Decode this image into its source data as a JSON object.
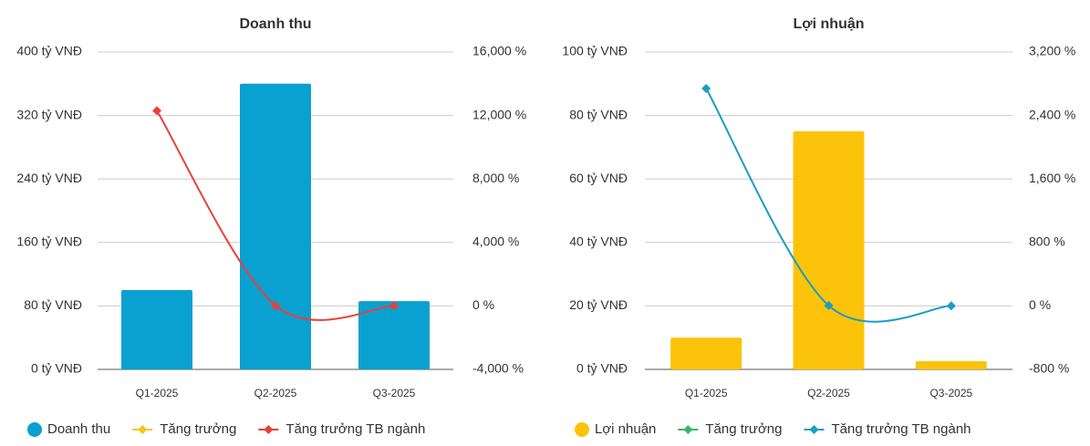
{
  "chart_data": [
    {
      "type": "bar",
      "title": "Doanh thu",
      "categories": [
        "Q1-2025",
        "Q2-2025",
        "Q3-2025"
      ],
      "series": [
        {
          "name": "Doanh thu",
          "type": "bar",
          "color": "#0aa0cf",
          "values": [
            100,
            360,
            86
          ]
        },
        {
          "name": "Tăng trưởng",
          "type": "line",
          "axis": "y2",
          "color": "#f5c518",
          "values": [
            null,
            null,
            null
          ]
        },
        {
          "name": "Tăng trưởng TB ngành",
          "type": "line",
          "axis": "y2",
          "color": "#e8413a",
          "values": [
            12300,
            20,
            10
          ]
        }
      ],
      "ylim": [
        0,
        400
      ],
      "yticks": [
        {
          "value": 0,
          "label": "0 tỷ VNĐ"
        },
        {
          "value": 80,
          "label": "80 tỷ VNĐ"
        },
        {
          "value": 160,
          "label": "160 tỷ VNĐ"
        },
        {
          "value": 240,
          "label": "240 tỷ VNĐ"
        },
        {
          "value": 320,
          "label": "320 tỷ VNĐ"
        },
        {
          "value": 400,
          "label": "400 tỷ VNĐ"
        }
      ],
      "y2lim": [
        -4000,
        16000
      ],
      "y2ticks": [
        {
          "value": -4000,
          "label": "-4,000 %"
        },
        {
          "value": 0,
          "label": "0 %"
        },
        {
          "value": 4000,
          "label": "4,000 %"
        },
        {
          "value": 8000,
          "label": "8,000 %"
        },
        {
          "value": 12000,
          "label": "12,000 %"
        },
        {
          "value": 16000,
          "label": "16,000 %"
        }
      ],
      "grid": true,
      "legend": "bottom"
    },
    {
      "type": "bar",
      "title": "Lợi nhuận",
      "categories": [
        "Q1-2025",
        "Q2-2025",
        "Q3-2025"
      ],
      "series": [
        {
          "name": "Lợi nhuận",
          "type": "bar",
          "color": "#fcc30b",
          "values": [
            10,
            75,
            2.6
          ]
        },
        {
          "name": "Tăng trưởng",
          "type": "line",
          "axis": "y2",
          "color": "#3cb371",
          "values": [
            null,
            null,
            null
          ]
        },
        {
          "name": "Tăng trưởng TB ngành",
          "type": "line",
          "axis": "y2",
          "color": "#1a9ec4",
          "values": [
            2740,
            5,
            0
          ]
        }
      ],
      "ylim": [
        0,
        100
      ],
      "yticks": [
        {
          "value": 0,
          "label": "0 tỷ VNĐ"
        },
        {
          "value": 20,
          "label": "20 tỷ VNĐ"
        },
        {
          "value": 40,
          "label": "40 tỷ VNĐ"
        },
        {
          "value": 60,
          "label": "60 tỷ VNĐ"
        },
        {
          "value": 80,
          "label": "80 tỷ VNĐ"
        },
        {
          "value": 100,
          "label": "100 tỷ VNĐ"
        }
      ],
      "y2lim": [
        -800,
        3200
      ],
      "y2ticks": [
        {
          "value": -800,
          "label": "-800 %"
        },
        {
          "value": 0,
          "label": "0 %"
        },
        {
          "value": 800,
          "label": "800 %"
        },
        {
          "value": 1600,
          "label": "1,600 %"
        },
        {
          "value": 2400,
          "label": "2,400 %"
        },
        {
          "value": 3200,
          "label": "3,200 %"
        }
      ],
      "grid": true,
      "legend": "bottom"
    }
  ]
}
